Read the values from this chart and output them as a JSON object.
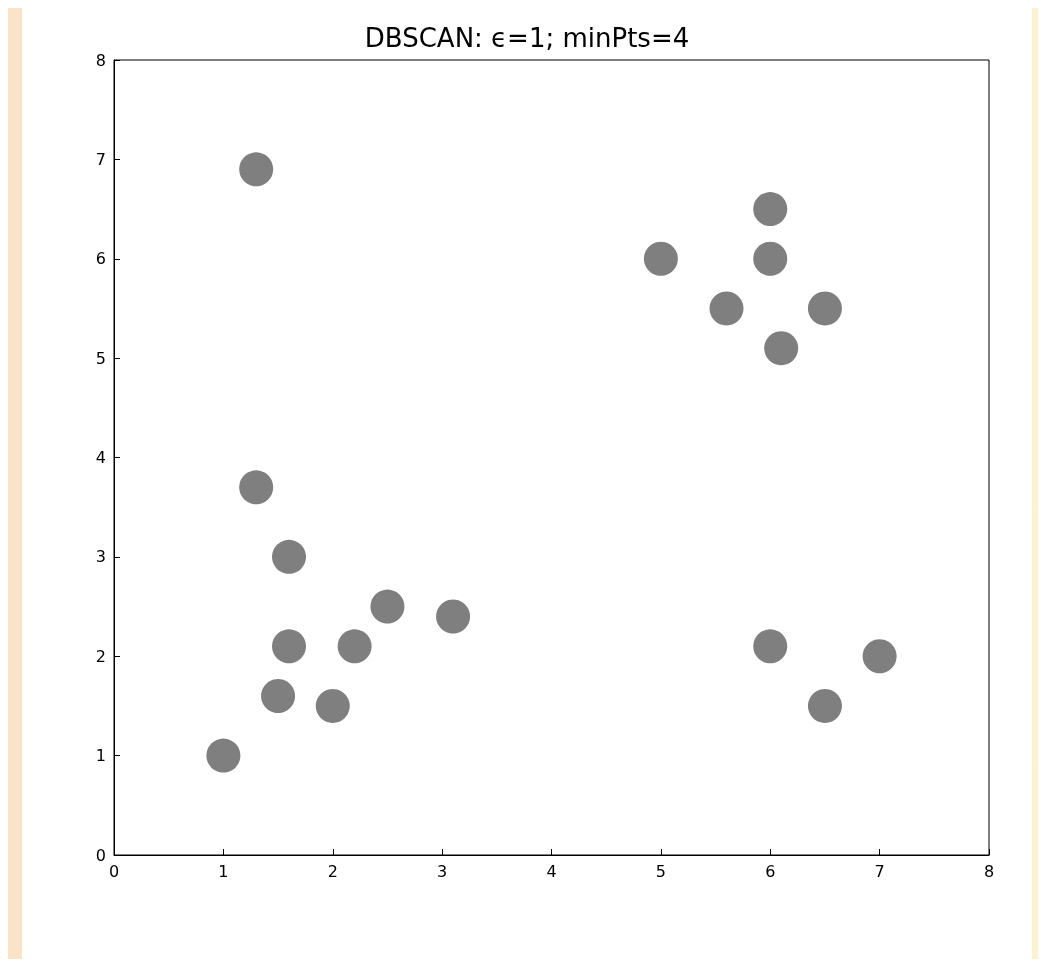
{
  "chart_data": {
    "type": "scatter",
    "title": "DBSCAN: ϵ=1; minPts=4",
    "x": [
      1,
      1.3,
      1.3,
      1.6,
      1.6,
      1.5,
      2.0,
      2.2,
      2.5,
      3.1,
      5.0,
      5.6,
      6.0,
      6.0,
      6.5,
      6.1,
      6.0,
      6.5,
      7.0
    ],
    "values": [
      1.0,
      6.9,
      3.7,
      3.0,
      2.1,
      1.6,
      1.5,
      2.1,
      2.5,
      2.4,
      6.0,
      5.5,
      6.5,
      6.0,
      5.5,
      5.1,
      2.1,
      1.5,
      2.0
    ],
    "color": "#7f7f7f",
    "marker": "circle",
    "grid": false,
    "xlim": [
      0,
      8
    ],
    "xticks": [
      0,
      1,
      2,
      3,
      4,
      5,
      6,
      7,
      8
    ],
    "ylim": [
      0,
      8
    ],
    "yticks": [
      0,
      1,
      2,
      3,
      4,
      5,
      6,
      7,
      8
    ]
  }
}
